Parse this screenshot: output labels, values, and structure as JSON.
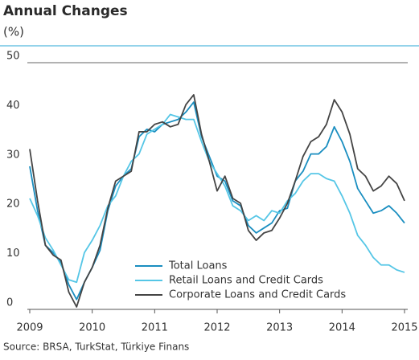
{
  "chart_data": {
    "type": "line",
    "title": "Annual Changes",
    "subtitle": "(%)",
    "source": "Source: BRSA, TurkStat, Türkiye Finans",
    "x": [
      2009,
      2009.125,
      2009.25,
      2009.375,
      2009.5,
      2009.625,
      2009.75,
      2009.875,
      2010,
      2010.125,
      2010.25,
      2010.375,
      2010.5,
      2010.625,
      2010.75,
      2010.875,
      2011,
      2011.125,
      2011.25,
      2011.375,
      2011.5,
      2011.625,
      2011.75,
      2011.875,
      2012,
      2012.125,
      2012.25,
      2012.375,
      2012.5,
      2012.625,
      2012.75,
      2012.875,
      2013,
      2013.125,
      2013.25,
      2013.375,
      2013.5,
      2013.625,
      2013.75,
      2013.875,
      2014,
      2014.125,
      2014.25,
      2014.375,
      2014.5,
      2014.625,
      2014.75,
      2014.875,
      2015
    ],
    "xlim": [
      2009,
      2015
    ],
    "xticks": [
      2009,
      2010,
      2011,
      2012,
      2013,
      2014,
      2015
    ],
    "ylim": [
      0,
      50
    ],
    "yticks": [
      0,
      10,
      20,
      30,
      40,
      50
    ],
    "series": [
      {
        "name": "Total Loans",
        "color": "#1a8ec0",
        "values": [
          29,
          20,
          13,
          11.5,
          9.5,
          5,
          2,
          5.5,
          8.5,
          12,
          20,
          25,
          27,
          28.5,
          35,
          36.5,
          36,
          37.5,
          38,
          38.5,
          40,
          42,
          35,
          31,
          27,
          26,
          22,
          21,
          17,
          15.5,
          16.5,
          17.5,
          20,
          20.5,
          26,
          28,
          31.5,
          31.5,
          33,
          37,
          34,
          30,
          24.5,
          22,
          19.5,
          20,
          21,
          19.5,
          17.5
        ]
      },
      {
        "name": "Retail Loans and Credit Cards",
        "color": "#55c6e6",
        "values": [
          22.5,
          19,
          14.5,
          12,
          9,
          6,
          5.5,
          11.5,
          14,
          17,
          21,
          23,
          27,
          30,
          31.5,
          35.5,
          36.5,
          37.5,
          39.5,
          39,
          38.5,
          38.5,
          34,
          30,
          27.5,
          25,
          21,
          20,
          18,
          19,
          18,
          20,
          19.5,
          22,
          23.5,
          26,
          27.5,
          27.5,
          26.5,
          26,
          23,
          19.5,
          15,
          13,
          10.5,
          9,
          9,
          8,
          7.5
        ]
      },
      {
        "name": "Corporate Loans and Credit Cards",
        "color": "#444444",
        "values": [
          32.5,
          22,
          13,
          11,
          10,
          3.5,
          0.5,
          5.5,
          8.5,
          13,
          20.5,
          26,
          27,
          28,
          36,
          36,
          37.5,
          38,
          37,
          37.5,
          41.5,
          43.5,
          35.5,
          30,
          24,
          27,
          22.5,
          21.5,
          16,
          14,
          15.5,
          16,
          18.5,
          21.5,
          26,
          31,
          34,
          35,
          37.5,
          42.5,
          40,
          35.5,
          28.5,
          27,
          24,
          25,
          27,
          25.5,
          22
        ]
      }
    ]
  }
}
